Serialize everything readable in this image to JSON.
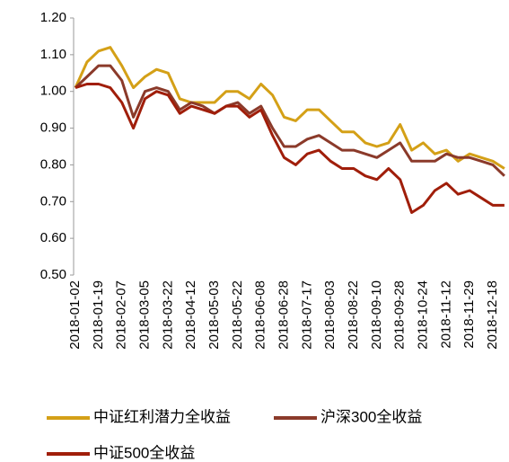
{
  "chart_data": {
    "type": "line",
    "categories": [
      "2018-01-02",
      null,
      "2018-01-19",
      null,
      "2018-02-07",
      null,
      "2018-03-05",
      null,
      "2018-03-22",
      null,
      "2018-04-12",
      null,
      "2018-05-03",
      null,
      "2018-05-22",
      null,
      "2018-06-08",
      null,
      "2018-06-28",
      null,
      "2018-07-17",
      null,
      "2018-08-03",
      null,
      "2018-08-22",
      null,
      "2018-09-10",
      null,
      "2018-09-28",
      null,
      "2018-10-24",
      null,
      "2018-11-12",
      null,
      "2018-11-29",
      null,
      "2018-12-18",
      null
    ],
    "series": [
      {
        "name": "中证红利潜力全收益",
        "color": "#d4a017",
        "values": [
          1.01,
          1.08,
          1.11,
          1.12,
          1.07,
          1.01,
          1.04,
          1.06,
          1.05,
          0.98,
          0.97,
          0.97,
          0.97,
          1.0,
          1.0,
          0.98,
          1.02,
          0.99,
          0.93,
          0.92,
          0.95,
          0.95,
          0.92,
          0.89,
          0.89,
          0.86,
          0.85,
          0.86,
          0.91,
          0.84,
          0.86,
          0.83,
          0.84,
          0.81,
          0.83,
          0.82,
          0.81,
          0.79
        ]
      },
      {
        "name": "沪深300全收益",
        "color": "#8b3a2a",
        "values": [
          1.01,
          1.04,
          1.07,
          1.07,
          1.03,
          0.93,
          1.0,
          1.01,
          1.0,
          0.95,
          0.97,
          0.96,
          0.94,
          0.96,
          0.97,
          0.94,
          0.96,
          0.9,
          0.85,
          0.85,
          0.87,
          0.88,
          0.86,
          0.84,
          0.84,
          0.83,
          0.82,
          0.84,
          0.86,
          0.81,
          0.81,
          0.81,
          0.83,
          0.82,
          0.82,
          0.81,
          0.8,
          0.77
        ]
      },
      {
        "name": "中证500全收益",
        "color": "#a01e0a",
        "values": [
          1.01,
          1.02,
          1.02,
          1.01,
          0.97,
          0.9,
          0.98,
          1.0,
          0.99,
          0.94,
          0.96,
          0.95,
          0.94,
          0.96,
          0.96,
          0.93,
          0.95,
          0.88,
          0.82,
          0.8,
          0.83,
          0.84,
          0.81,
          0.79,
          0.79,
          0.77,
          0.76,
          0.79,
          0.76,
          0.67,
          0.69,
          0.73,
          0.75,
          0.72,
          0.73,
          0.71,
          0.69,
          0.69
        ]
      }
    ],
    "ylim": [
      0.5,
      1.2
    ],
    "yticks": [
      {
        "value": 0.5,
        "label": "0.50"
      },
      {
        "value": 0.6,
        "label": "0.60"
      },
      {
        "value": 0.7,
        "label": "0.70"
      },
      {
        "value": 0.8,
        "label": "0.80"
      },
      {
        "value": 0.9,
        "label": "0.90"
      },
      {
        "value": 1.0,
        "label": "1.00"
      },
      {
        "value": 1.1,
        "label": "1.10"
      },
      {
        "value": 1.2,
        "label": "1.20"
      }
    ]
  }
}
